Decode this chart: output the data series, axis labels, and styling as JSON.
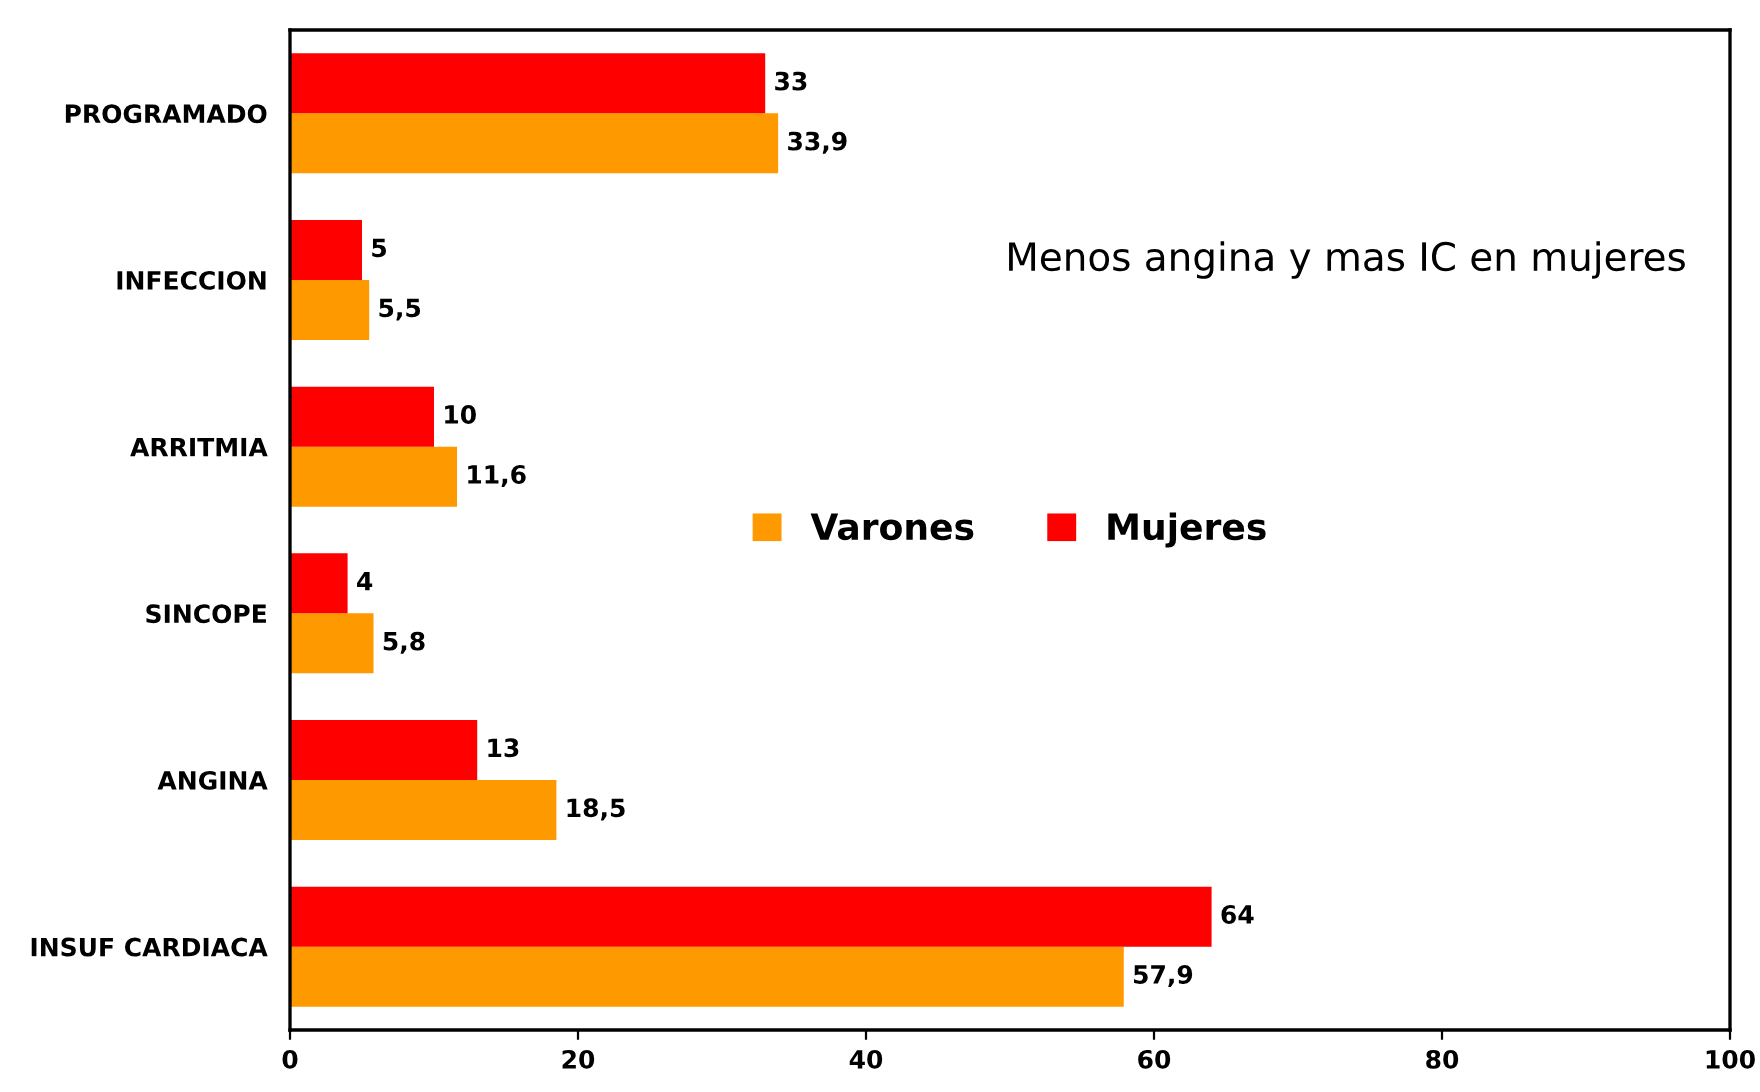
{
  "chart_data": {
    "type": "bar",
    "orientation": "horizontal",
    "categories": [
      "PROGRAMADO",
      "INFECCION",
      "ARRITMIA",
      "SINCOPE",
      "ANGINA",
      "INSUF CARDIACA"
    ],
    "series": [
      {
        "name": "Varones",
        "color": "#ff9900",
        "values": [
          33.9,
          5.5,
          11.6,
          5.8,
          18.5,
          57.9
        ],
        "value_labels": [
          "33,9",
          "5,5",
          "11,6",
          "5,8",
          "18,5",
          "57,9"
        ]
      },
      {
        "name": "Mujeres",
        "color": "#ff0000",
        "values": [
          33,
          5,
          10,
          4,
          13,
          64
        ],
        "value_labels": [
          "33",
          "5",
          "10",
          "4",
          "13",
          "64"
        ]
      }
    ],
    "xlim": [
      0,
      100
    ],
    "xticks": [
      0,
      20,
      40,
      60,
      80,
      100
    ],
    "grid": false,
    "legend": "center",
    "annotations": [
      "Menos angina y mas IC en mujeres"
    ]
  }
}
